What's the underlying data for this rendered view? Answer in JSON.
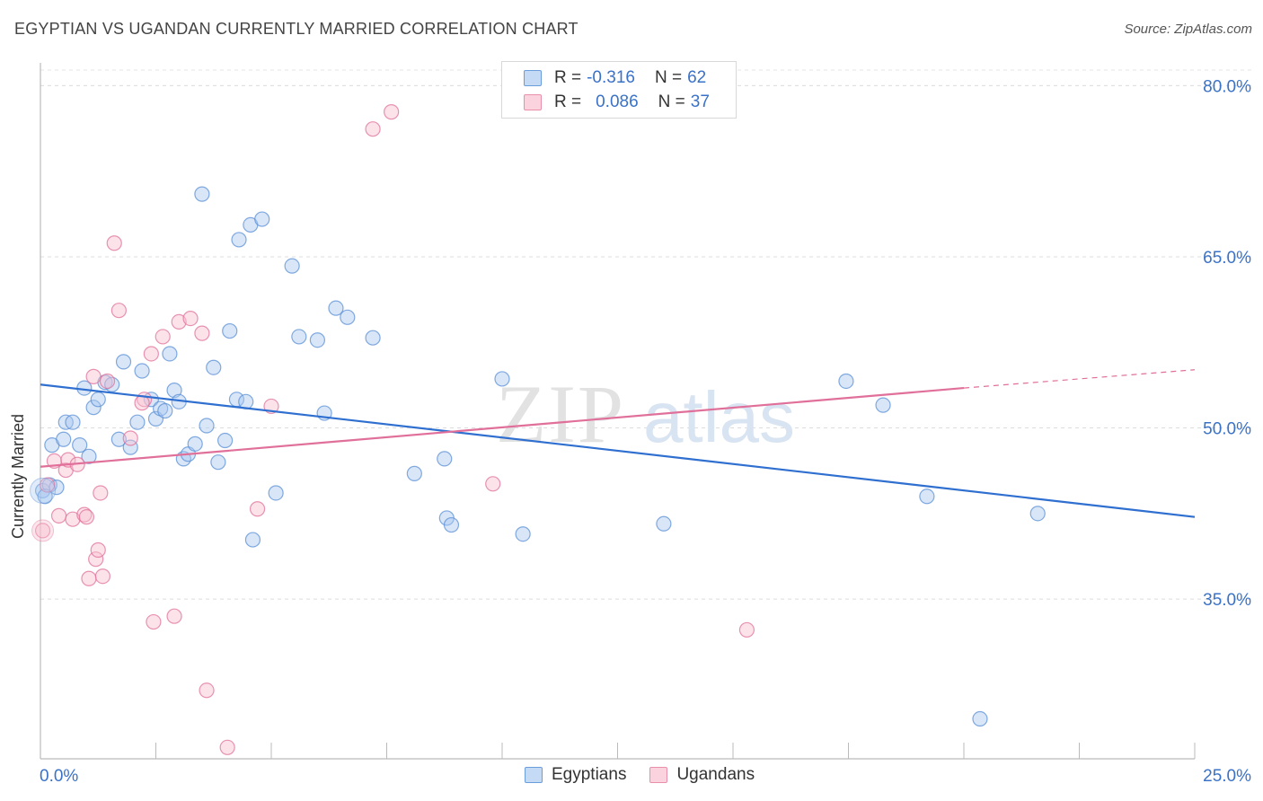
{
  "header": {
    "title": "EGYPTIAN VS UGANDAN CURRENTLY MARRIED CORRELATION CHART",
    "source": "Source: ZipAtlas.com"
  },
  "watermark": {
    "zip": "ZIP",
    "atlas": "atlas"
  },
  "legend": {
    "rows": [
      {
        "r_label": "R =",
        "r_value": "-0.316",
        "n_label": "N =",
        "n_value": "62",
        "color": "#a8c8f0",
        "border": "#6a9edb"
      },
      {
        "r_label": "R =",
        "r_value": "0.086",
        "n_label": "N =",
        "n_value": "37",
        "color": "#f8c0d0",
        "border": "#e890aa"
      }
    ]
  },
  "bottom_legend": {
    "series1": "Egyptians",
    "series2": "Ugandans"
  },
  "chart_data": {
    "type": "scatter",
    "ylabel": "Currently Married",
    "xlim": [
      0,
      25
    ],
    "ylim": [
      21,
      82
    ],
    "x_tick_labels": {
      "min": "0.0%",
      "max": "25.0%"
    },
    "y_ticks": [
      35,
      50,
      65,
      80
    ],
    "y_tick_labels": [
      "35.0%",
      "50.0%",
      "65.0%",
      "80.0%"
    ],
    "grid": true,
    "series": [
      {
        "name": "Egyptians",
        "color": "#5a8fd6",
        "fill": "#a8c8f0",
        "trend": {
          "x": [
            0,
            25
          ],
          "y": [
            53.8,
            42.2
          ]
        },
        "points": [
          [
            0.05,
            44.5
          ],
          [
            0.2,
            45.0
          ],
          [
            0.25,
            48.5
          ],
          [
            0.35,
            44.8
          ],
          [
            0.5,
            49.0
          ],
          [
            0.55,
            50.5
          ],
          [
            0.7,
            50.5
          ],
          [
            0.85,
            48.5
          ],
          [
            0.95,
            53.5
          ],
          [
            1.05,
            47.5
          ],
          [
            1.15,
            51.8
          ],
          [
            1.25,
            52.5
          ],
          [
            1.4,
            54.0
          ],
          [
            1.55,
            53.8
          ],
          [
            1.7,
            49.0
          ],
          [
            1.8,
            55.8
          ],
          [
            1.95,
            48.3
          ],
          [
            2.1,
            50.5
          ],
          [
            2.2,
            55.0
          ],
          [
            2.4,
            52.5
          ],
          [
            2.5,
            50.8
          ],
          [
            2.6,
            51.7
          ],
          [
            2.7,
            51.5
          ],
          [
            2.8,
            56.5
          ],
          [
            2.9,
            53.3
          ],
          [
            3.0,
            52.3
          ],
          [
            3.1,
            47.3
          ],
          [
            3.2,
            47.7
          ],
          [
            3.35,
            48.6
          ],
          [
            3.5,
            70.5
          ],
          [
            3.6,
            50.2
          ],
          [
            3.75,
            55.3
          ],
          [
            3.85,
            47.0
          ],
          [
            4.0,
            48.9
          ],
          [
            4.1,
            58.5
          ],
          [
            4.25,
            52.5
          ],
          [
            4.3,
            66.5
          ],
          [
            4.45,
            52.3
          ],
          [
            4.55,
            67.8
          ],
          [
            4.6,
            40.2
          ],
          [
            4.8,
            68.3
          ],
          [
            5.1,
            44.3
          ],
          [
            5.45,
            64.2
          ],
          [
            5.6,
            58.0
          ],
          [
            6.0,
            57.7
          ],
          [
            6.15,
            51.3
          ],
          [
            6.4,
            60.5
          ],
          [
            6.65,
            59.7
          ],
          [
            7.2,
            57.9
          ],
          [
            8.1,
            46.0
          ],
          [
            8.75,
            47.3
          ],
          [
            8.8,
            42.1
          ],
          [
            8.9,
            41.5
          ],
          [
            10.0,
            54.3
          ],
          [
            10.45,
            40.7
          ],
          [
            13.5,
            41.6
          ],
          [
            17.45,
            54.1
          ],
          [
            18.25,
            52.0
          ],
          [
            19.2,
            44.0
          ],
          [
            20.35,
            24.5
          ],
          [
            21.6,
            42.5
          ],
          [
            0.1,
            44.0
          ]
        ]
      },
      {
        "name": "Ugandans",
        "color": "#e0709a",
        "fill": "#f8c0d0",
        "trend": {
          "x": [
            0,
            20
          ],
          "y": [
            46.6,
            53.5
          ]
        },
        "trend_dashed": {
          "x": [
            20,
            25
          ],
          "y": [
            53.5,
            55.1
          ]
        },
        "points": [
          [
            0.05,
            41.0
          ],
          [
            0.15,
            45.0
          ],
          [
            0.3,
            47.1
          ],
          [
            0.4,
            42.3
          ],
          [
            0.55,
            46.3
          ],
          [
            0.6,
            47.2
          ],
          [
            0.7,
            42.0
          ],
          [
            0.8,
            46.8
          ],
          [
            0.95,
            42.4
          ],
          [
            1.0,
            42.2
          ],
          [
            1.05,
            36.8
          ],
          [
            1.15,
            54.5
          ],
          [
            1.2,
            38.5
          ],
          [
            1.25,
            39.3
          ],
          [
            1.3,
            44.3
          ],
          [
            1.35,
            37.0
          ],
          [
            1.45,
            54.1
          ],
          [
            1.6,
            66.2
          ],
          [
            1.7,
            60.3
          ],
          [
            1.95,
            49.1
          ],
          [
            2.25,
            52.5
          ],
          [
            2.4,
            56.5
          ],
          [
            2.45,
            33.0
          ],
          [
            2.65,
            58.0
          ],
          [
            2.9,
            33.5
          ],
          [
            3.0,
            59.3
          ],
          [
            3.25,
            59.6
          ],
          [
            3.5,
            58.3
          ],
          [
            3.6,
            27.0
          ],
          [
            4.05,
            22.0
          ],
          [
            4.7,
            42.9
          ],
          [
            5.0,
            51.9
          ],
          [
            7.2,
            76.2
          ],
          [
            7.6,
            77.7
          ],
          [
            9.8,
            45.1
          ],
          [
            15.3,
            32.3
          ],
          [
            2.2,
            52.2
          ]
        ]
      }
    ]
  }
}
